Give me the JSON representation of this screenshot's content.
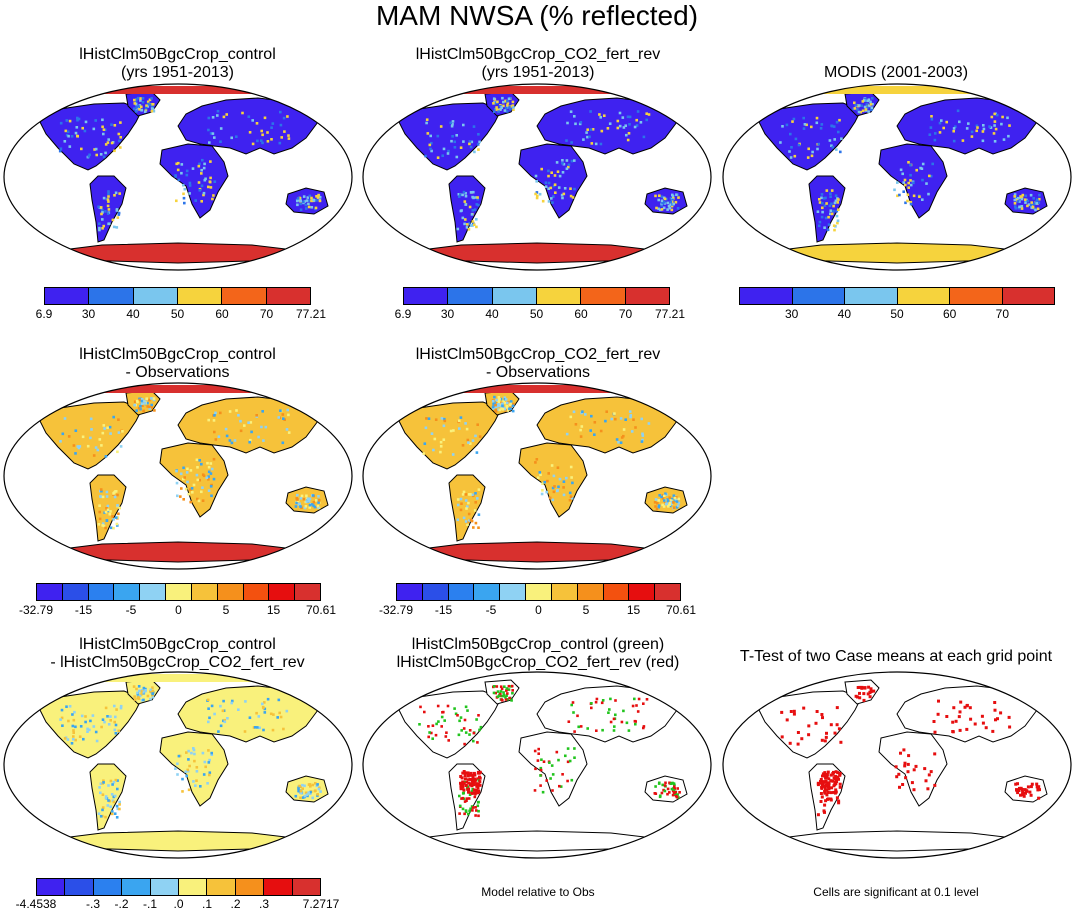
{
  "title": "MAM NWSA (% reflected)",
  "panels": [
    {
      "id": "p1",
      "title": [
        "lHistClm50BgcCrop_control",
        "(yrs 1951-2013)"
      ],
      "style": "abs_model"
    },
    {
      "id": "p2",
      "title": [
        "lHistClm50BgcCrop_CO2_fert_rev",
        "(yrs 1951-2013)"
      ],
      "style": "abs_model"
    },
    {
      "id": "p3",
      "title": [
        "MODIS (2001-2003)"
      ],
      "style": "abs_obs"
    },
    {
      "id": "p4",
      "title": [
        "lHistClm50BgcCrop_control",
        "- Observations"
      ],
      "style": "diff_obs"
    },
    {
      "id": "p5",
      "title": [
        "lHistClm50BgcCrop_CO2_fert_rev",
        "- Observations"
      ],
      "style": "diff_obs"
    },
    {
      "id": "p6",
      "title": [
        "lHistClm50BgcCrop_control",
        "- lHistClm50BgcCrop_CO2_fert_rev"
      ],
      "style": "diff_case"
    },
    {
      "id": "p7",
      "title": [
        "lHistClm50BgcCrop_control (green)",
        "lHistClm50BgcCrop_CO2_fert_rev (red)"
      ],
      "style": "relative"
    },
    {
      "id": "p8",
      "title": [
        "T-Test of two Case means at each grid point"
      ],
      "style": "ttest"
    }
  ],
  "colorbars": [
    {
      "id": "cb1",
      "colors": [
        "#3f22f0",
        "#2c74e9",
        "#7ac6ee",
        "#f6d33d",
        "#f3651a",
        "#d8302e"
      ],
      "labels": [
        "6.9",
        "30",
        "40",
        "50",
        "60",
        "70",
        "77.21"
      ]
    },
    {
      "id": "cb2",
      "colors": [
        "#3f22f0",
        "#2c74e9",
        "#7ac6ee",
        "#f6d33d",
        "#f3651a",
        "#d8302e"
      ],
      "labels": [
        "6.9",
        "30",
        "40",
        "50",
        "60",
        "70",
        "77.21"
      ]
    },
    {
      "id": "cb3",
      "colors": [
        "#3f22f0",
        "#2c74e9",
        "#7ac6ee",
        "#f6d33d",
        "#f3651a",
        "#d8302e"
      ],
      "labels": [
        "",
        "30",
        "40",
        "50",
        "60",
        "70",
        ""
      ]
    },
    {
      "id": "cb4",
      "colors": [
        "#3f22f0",
        "#2b4fe8",
        "#2b80ef",
        "#3aa5f0",
        "#8fd2f3",
        "#f9f17c",
        "#f6c23a",
        "#f5901c",
        "#f3510f",
        "#e60e0f",
        "#d8302e"
      ],
      "labels": [
        "-32.79",
        "",
        "-15",
        "",
        "-5",
        "",
        "0",
        "",
        "5",
        "",
        "15",
        "",
        "70.61"
      ]
    },
    {
      "id": "cb5",
      "colors": [
        "#3f22f0",
        "#2b4fe8",
        "#2b80ef",
        "#3aa5f0",
        "#8fd2f3",
        "#f9f17c",
        "#f6c23a",
        "#f5901c",
        "#f3510f",
        "#e60e0f",
        "#d8302e"
      ],
      "labels": [
        "-32.79",
        "",
        "-15",
        "",
        "-5",
        "",
        "0",
        "",
        "5",
        "",
        "15",
        "",
        "70.61"
      ]
    },
    {
      "id": "cb6",
      "colors": [
        "#3f22f0",
        "#2b4fe8",
        "#2b80ef",
        "#3aa5f0",
        "#8fd2f3",
        "#f9f17c",
        "#f6c23a",
        "#f5901c",
        "#e60e0f",
        "#d8302e"
      ],
      "labels": [
        "-4.4538",
        "",
        "-.3",
        "-.2",
        "-.1",
        ".0",
        ".1",
        ".2",
        ".3",
        "",
        "7.2717"
      ]
    }
  ],
  "footnotes": {
    "relative": "Model relative to Obs",
    "ttest": "Cells are significant at 0.1 level"
  }
}
